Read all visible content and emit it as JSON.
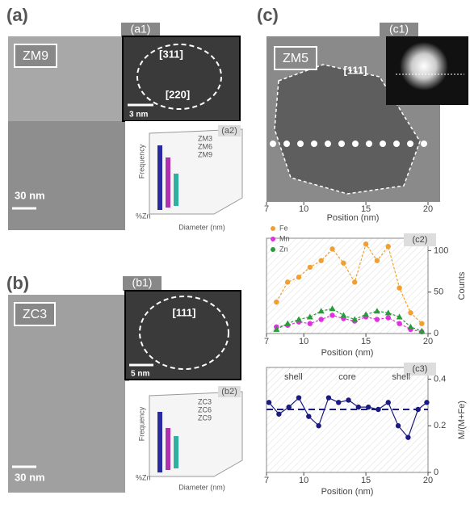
{
  "figure": {
    "a": {
      "label": "(a)",
      "sample": "ZM9",
      "scale": "30 nm",
      "a1": {
        "label": "(a1)",
        "planes": [
          "[311]",
          "[220]"
        ],
        "scale": "3 nm"
      },
      "a2": {
        "label": "(a2)",
        "legend": [
          "ZM3",
          "ZM6",
          "ZM9"
        ],
        "ylabel": "Frequency",
        "xlabel": "Diameter (nm)",
        "zlabel": "%Zn"
      }
    },
    "b": {
      "label": "(b)",
      "sample": "ZC3",
      "scale": "30 nm",
      "b1": {
        "label": "(b1)",
        "planes": [
          "[111]"
        ],
        "scale": "5 nm"
      },
      "b2": {
        "label": "(b2)",
        "legend": [
          "ZC3",
          "ZC6",
          "ZC9"
        ],
        "ylabel": "Frequency",
        "xlabel": "Diameter (nm)",
        "zlabel": "%Zn"
      }
    },
    "c": {
      "label": "(c)",
      "sample": "ZM5",
      "plane": "[111]",
      "c1": {
        "label": "(c1)"
      },
      "xticks": [
        7,
        10,
        15,
        20
      ],
      "xlim": [
        7,
        20
      ],
      "xlabel": "Position (nm)"
    }
  },
  "chart_data": [
    {
      "type": "line",
      "title": "(c2)",
      "xlabel": "Position (nm)",
      "ylabel": "Counts",
      "xlim": [
        7,
        20
      ],
      "xticks": [
        7,
        10,
        15,
        20
      ],
      "ylim": [
        0,
        115
      ],
      "yticks": [
        0,
        50,
        100
      ],
      "x": [
        7.8,
        8.7,
        9.6,
        10.5,
        11.4,
        12.3,
        13.2,
        14.1,
        15.0,
        15.9,
        16.8,
        17.7,
        18.6,
        19.5
      ],
      "legend": "upper left",
      "series": [
        {
          "name": "Fe",
          "color": "#f0a030",
          "values": [
            38,
            62,
            68,
            80,
            88,
            102,
            85,
            62,
            108,
            88,
            105,
            55,
            25,
            12
          ]
        },
        {
          "name": "Mn",
          "color": "#e030e0",
          "values": [
            8,
            10,
            14,
            12,
            17,
            22,
            18,
            15,
            20,
            17,
            19,
            12,
            5,
            2
          ]
        },
        {
          "name": "Zn",
          "color": "#2a9a3a",
          "values": [
            5,
            12,
            17,
            20,
            27,
            30,
            22,
            17,
            23,
            27,
            25,
            20,
            8,
            3
          ]
        }
      ]
    },
    {
      "type": "line",
      "title": "(c3)",
      "xlabel": "Position (nm)",
      "ylabel": "M/(M+Fe)",
      "xlim": [
        7,
        20
      ],
      "xticks": [
        7,
        10,
        15,
        20
      ],
      "ylim": [
        0,
        0.45
      ],
      "yticks": [
        0,
        0.2,
        0.4
      ],
      "x": [
        7.2,
        8.0,
        8.8,
        9.6,
        10.4,
        11.2,
        12.0,
        12.8,
        13.6,
        14.4,
        15.2,
        16.0,
        16.8,
        17.6,
        18.4,
        19.2,
        19.9
      ],
      "reference_line": 0.27,
      "annotations": [
        "shell",
        "core",
        "shell"
      ],
      "series": [
        {
          "color": "#1a1a80",
          "values": [
            0.3,
            0.25,
            0.28,
            0.32,
            0.24,
            0.2,
            0.32,
            0.3,
            0.31,
            0.28,
            0.28,
            0.27,
            0.3,
            0.2,
            0.15,
            0.27,
            0.3
          ]
        }
      ]
    }
  ]
}
